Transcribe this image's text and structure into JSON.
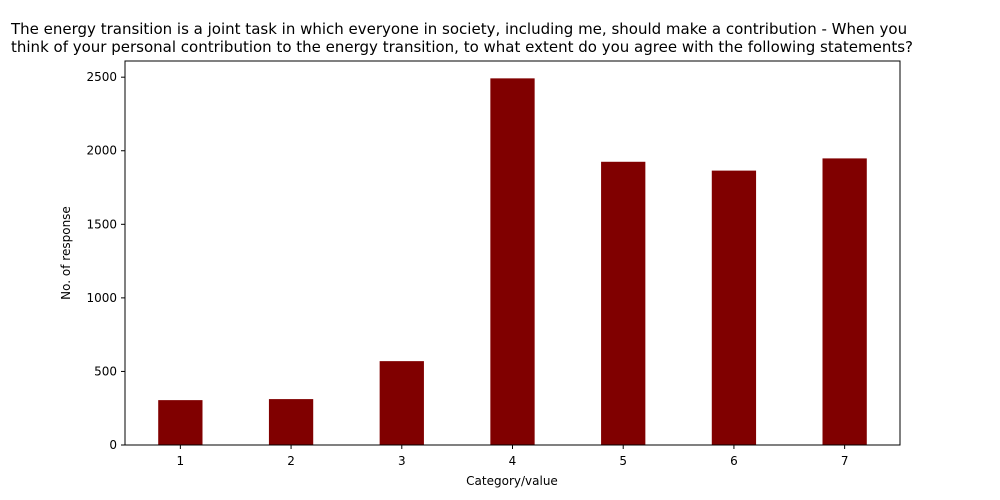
{
  "chart_data": {
    "type": "bar",
    "title_lines": [
      "The energy transition is a joint task in which everyone in society, including me, should make a contribution - When you",
      "think of your personal contribution to the energy transition, to what extent do you agree with the following statements?"
    ],
    "categories": [
      "1",
      "2",
      "3",
      "4",
      "5",
      "6",
      "7"
    ],
    "values": [
      305,
      312,
      570,
      2492,
      1925,
      1865,
      1948
    ],
    "xlabel": "Category/value",
    "ylabel": "No. of response",
    "ylim": [
      0,
      2610
    ],
    "yticks": [
      0,
      500,
      1000,
      1500,
      2000,
      2500
    ],
    "bar_color": "#800000",
    "grid": false
  }
}
